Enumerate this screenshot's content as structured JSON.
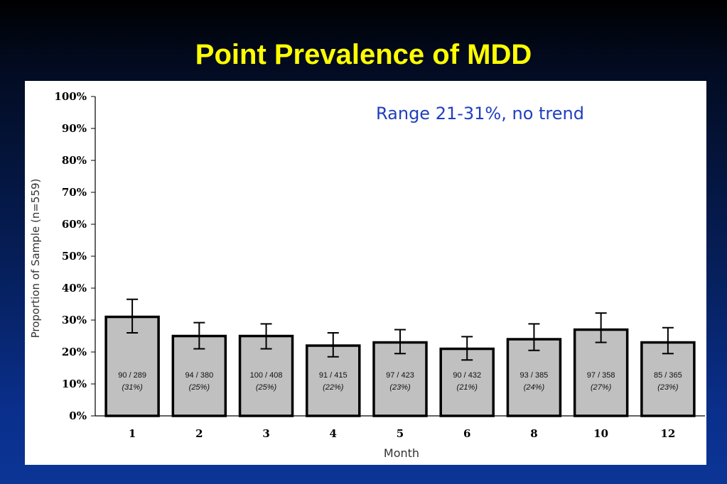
{
  "slide": {
    "title": "Point Prevalence of MDD"
  },
  "chart_data": {
    "type": "bar",
    "title": "Point Prevalence of MDD",
    "xlabel": "Month",
    "ylabel": "Proportion of Sample (n=559)",
    "ylim": [
      0,
      100
    ],
    "y_ticks": [
      "0%",
      "10%",
      "20%",
      "30%",
      "40%",
      "50%",
      "60%",
      "70%",
      "80%",
      "90%",
      "100%"
    ],
    "categories": [
      "1",
      "2",
      "3",
      "4",
      "5",
      "6",
      "8",
      "10",
      "12"
    ],
    "values": [
      31,
      25,
      25,
      22,
      23,
      21,
      24,
      27,
      23
    ],
    "error_low": [
      26,
      21,
      21,
      18.5,
      19.5,
      17.5,
      20.5,
      23,
      19.5
    ],
    "error_high": [
      36.5,
      29.2,
      28.8,
      26,
      27,
      24.8,
      28.8,
      32.2,
      27.6
    ],
    "bar_labels": [
      "90 / 289",
      "94 / 380",
      "100 / 408",
      "91 / 415",
      "97 / 423",
      "90 / 432",
      "93 / 385",
      "97 / 358",
      "85 / 365"
    ],
    "bar_percent_labels": [
      "(31%)",
      "(25%)",
      "(25%)",
      "(22%)",
      "(23%)",
      "(21%)",
      "(24%)",
      "(27%)",
      "(23%)"
    ],
    "annotation": "Range 21-31%, no trend",
    "grid": false,
    "colors": {
      "bar_fill": "#c0c0c0",
      "bar_stroke": "#000000",
      "annotation": "#1f3fbf",
      "title": "#ffff00"
    }
  }
}
